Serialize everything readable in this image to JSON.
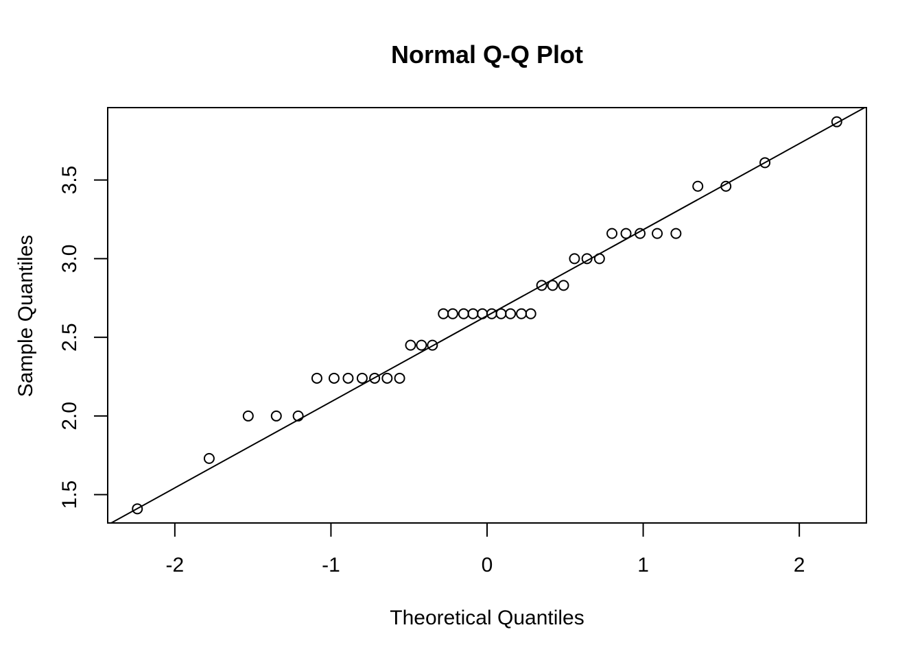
{
  "chart_data": {
    "type": "scatter",
    "title": "Normal Q-Q Plot",
    "xlabel": "Theoretical Quantiles",
    "ylabel": "Sample Quantiles",
    "xlim": [
      -2.43,
      2.43
    ],
    "ylim": [
      1.32,
      3.96
    ],
    "xticks": [
      -2,
      -1,
      0,
      1,
      2
    ],
    "xtick_labels": [
      "-2",
      "-1",
      "0",
      "1",
      "2"
    ],
    "yticks": [
      1.5,
      2.0,
      2.5,
      3.0,
      3.5
    ],
    "ytick_labels": [
      "1.5",
      "2.0",
      "2.5",
      "3.0",
      "3.5"
    ],
    "grid": false,
    "marker": "open-circle",
    "reference_line": {
      "intercept": 2.637,
      "slope": 0.547
    },
    "points": [
      {
        "x": -2.24,
        "y": 1.41
      },
      {
        "x": -1.78,
        "y": 1.73
      },
      {
        "x": -1.53,
        "y": 2.0
      },
      {
        "x": -1.35,
        "y": 2.0
      },
      {
        "x": -1.21,
        "y": 2.0
      },
      {
        "x": -1.09,
        "y": 2.24
      },
      {
        "x": -0.98,
        "y": 2.24
      },
      {
        "x": -0.89,
        "y": 2.24
      },
      {
        "x": -0.8,
        "y": 2.24
      },
      {
        "x": -0.72,
        "y": 2.24
      },
      {
        "x": -0.64,
        "y": 2.24
      },
      {
        "x": -0.56,
        "y": 2.24
      },
      {
        "x": -0.49,
        "y": 2.45
      },
      {
        "x": -0.42,
        "y": 2.45
      },
      {
        "x": -0.35,
        "y": 2.45
      },
      {
        "x": -0.28,
        "y": 2.65
      },
      {
        "x": -0.22,
        "y": 2.65
      },
      {
        "x": -0.15,
        "y": 2.65
      },
      {
        "x": -0.09,
        "y": 2.65
      },
      {
        "x": -0.03,
        "y": 2.65
      },
      {
        "x": 0.03,
        "y": 2.65
      },
      {
        "x": 0.09,
        "y": 2.65
      },
      {
        "x": 0.15,
        "y": 2.65
      },
      {
        "x": 0.22,
        "y": 2.65
      },
      {
        "x": 0.28,
        "y": 2.65
      },
      {
        "x": 0.35,
        "y": 2.83
      },
      {
        "x": 0.42,
        "y": 2.83
      },
      {
        "x": 0.49,
        "y": 2.83
      },
      {
        "x": 0.56,
        "y": 3.0
      },
      {
        "x": 0.64,
        "y": 3.0
      },
      {
        "x": 0.72,
        "y": 3.0
      },
      {
        "x": 0.8,
        "y": 3.16
      },
      {
        "x": 0.89,
        "y": 3.16
      },
      {
        "x": 0.98,
        "y": 3.16
      },
      {
        "x": 1.09,
        "y": 3.16
      },
      {
        "x": 1.21,
        "y": 3.16
      },
      {
        "x": 1.35,
        "y": 3.46
      },
      {
        "x": 1.53,
        "y": 3.46
      },
      {
        "x": 1.78,
        "y": 3.61
      },
      {
        "x": 2.24,
        "y": 3.87
      }
    ]
  }
}
